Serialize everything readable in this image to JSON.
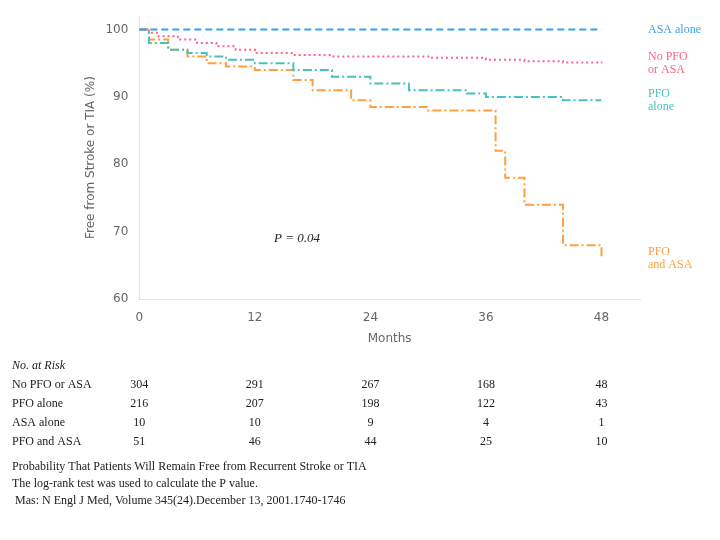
{
  "chart_data": {
    "type": "line",
    "xlabel": "Months",
    "ylabel": "Free from Stroke or TIA (%)",
    "xlim": [
      0,
      52
    ],
    "ylim": [
      60,
      102
    ],
    "xticks": [
      0,
      12,
      24,
      36,
      48
    ],
    "yticks": [
      60,
      70,
      80,
      90,
      100
    ],
    "grid": false,
    "series": [
      {
        "name": "ASA alone",
        "type": "line",
        "line_style": "dashed",
        "x": [
          0,
          48
        ],
        "values": [
          100,
          100
        ]
      },
      {
        "name": "No PFO\nor ASA",
        "type": "step",
        "line_style": "dotted",
        "x": [
          0,
          1,
          2,
          4,
          6,
          8,
          10,
          12,
          16,
          20,
          24,
          30,
          36,
          40,
          44,
          48
        ],
        "values": [
          100,
          99.5,
          99,
          98.5,
          98,
          97.5,
          97,
          96.5,
          96.2,
          96,
          96,
          95.8,
          95.5,
          95.3,
          95.1,
          95
        ]
      },
      {
        "name": "PFO\nalone",
        "type": "step",
        "line_style": "dashdot",
        "x": [
          0,
          1,
          3,
          5,
          7,
          9,
          12,
          16,
          20,
          24,
          28,
          34,
          36,
          40,
          44,
          48
        ],
        "values": [
          100,
          98,
          97,
          96.5,
          96,
          95.5,
          95,
          94,
          93,
          92,
          91,
          90.5,
          90,
          90,
          89.5,
          89.5
        ]
      },
      {
        "name": "PFO\nand ASA",
        "type": "step",
        "line_style": "dashdot",
        "x": [
          0,
          1,
          3,
          5,
          7,
          9,
          12,
          16,
          18,
          22,
          24,
          30,
          36,
          37,
          38,
          40,
          44,
          48
        ],
        "values": [
          100,
          98.5,
          97,
          96,
          95,
          94.5,
          94,
          92.5,
          91,
          89.5,
          88.5,
          88,
          88,
          82,
          78,
          74,
          68,
          66
        ]
      }
    ],
    "annotations": [
      {
        "text": "P = 0.04",
        "x": 14,
        "y": 68.5
      }
    ],
    "no_at_risk": {
      "title": "No. at Risk",
      "x": [
        0,
        12,
        24,
        36,
        48
      ],
      "rows": [
        {
          "label": "No PFO or ASA",
          "values": [
            304,
            291,
            267,
            168,
            48
          ]
        },
        {
          "label": "PFO alone",
          "values": [
            216,
            207,
            198,
            122,
            43
          ]
        },
        {
          "label": "ASA alone",
          "values": [
            10,
            10,
            9,
            4,
            1
          ]
        },
        {
          "label": "PFO and ASA",
          "values": [
            51,
            46,
            44,
            25,
            10
          ]
        }
      ]
    },
    "footnotes": [
      "Probability That Patients Will Remain Free from Recurrent Stroke or TIA",
      "The log-rank test was used to calculate the P value.",
      " Mas: N Engl J Med, Volume 345(24).December 13, 2001.1740-1746"
    ]
  }
}
